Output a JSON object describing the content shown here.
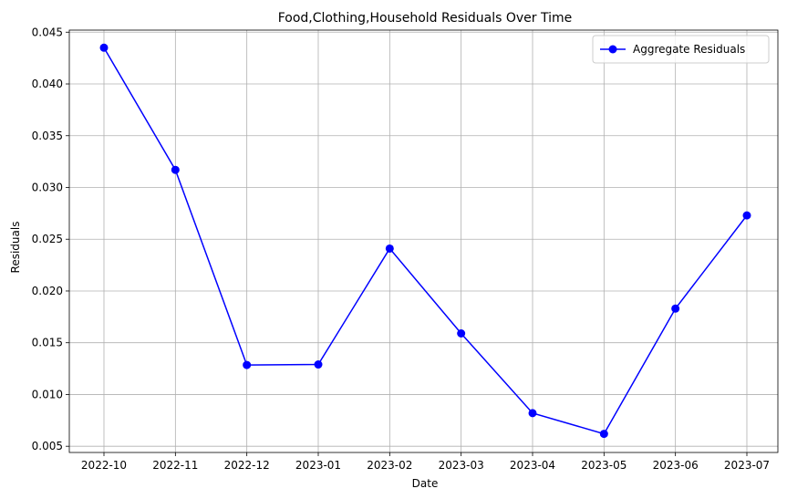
{
  "chart_data": {
    "type": "line",
    "title": "Food,Clothing,Household Residuals Over Time",
    "xlabel": "Date",
    "ylabel": "Residuals",
    "categories": [
      "2022-10",
      "2022-11",
      "2022-12",
      "2023-01",
      "2023-02",
      "2023-03",
      "2023-04",
      "2023-05",
      "2023-06",
      "2023-07"
    ],
    "series": [
      {
        "name": "Aggregate Residuals",
        "color": "#0000ff",
        "marker": "circle",
        "values": [
          0.0435,
          0.0317,
          0.01285,
          0.0129,
          0.0241,
          0.0159,
          0.0082,
          0.0062,
          0.0183,
          0.0273
        ]
      }
    ],
    "ylim": [
      0.0044,
      0.0452
    ],
    "yticks": [
      "0.005",
      "0.010",
      "0.015",
      "0.020",
      "0.025",
      "0.030",
      "0.035",
      "0.040",
      "0.045"
    ],
    "grid": true,
    "legend_position": "top-right"
  }
}
